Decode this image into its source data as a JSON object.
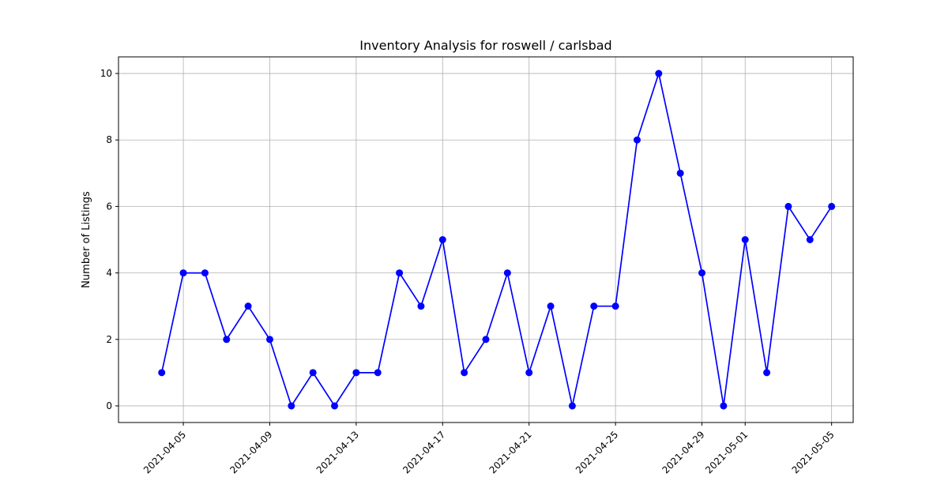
{
  "chart_data": {
    "type": "line",
    "title": "Inventory Analysis for roswell / carlsbad",
    "xlabel": "",
    "ylabel": "Number of Listings",
    "x": [
      "2021-04-04",
      "2021-04-05",
      "2021-04-06",
      "2021-04-07",
      "2021-04-08",
      "2021-04-09",
      "2021-04-10",
      "2021-04-11",
      "2021-04-12",
      "2021-04-13",
      "2021-04-14",
      "2021-04-15",
      "2021-04-16",
      "2021-04-17",
      "2021-04-18",
      "2021-04-19",
      "2021-04-20",
      "2021-04-21",
      "2021-04-22",
      "2021-04-23",
      "2021-04-24",
      "2021-04-25",
      "2021-04-26",
      "2021-04-27",
      "2021-04-28",
      "2021-04-29",
      "2021-04-30",
      "2021-05-01",
      "2021-05-02",
      "2021-05-03",
      "2021-05-04",
      "2021-05-05"
    ],
    "series": [
      {
        "values": [
          1,
          4,
          4,
          2,
          3,
          2,
          0,
          1,
          0,
          1,
          1,
          4,
          3,
          5,
          1,
          2,
          4,
          1,
          3,
          0,
          3,
          3,
          8,
          10,
          7,
          4,
          0,
          5,
          1,
          6,
          5,
          6
        ],
        "color": "#0000ff",
        "marker": "circle"
      }
    ],
    "xticks": [
      "2021-04-05",
      "2021-04-09",
      "2021-04-13",
      "2021-04-17",
      "2021-04-21",
      "2021-04-25",
      "2021-04-29",
      "2021-05-01",
      "2021-05-05"
    ],
    "yticks": [
      0,
      2,
      4,
      6,
      8,
      10
    ],
    "xlim": [
      "2021-04-02",
      "2021-05-06"
    ],
    "ylim": [
      -0.5,
      10.5
    ],
    "grid": true,
    "legend": "none"
  }
}
